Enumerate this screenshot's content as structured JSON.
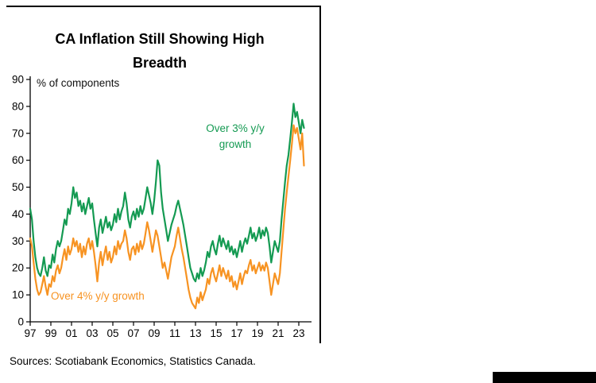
{
  "header": {
    "title_line1": "CA Inflation Still Showing High",
    "title_line2": "Breadth"
  },
  "annotations": {
    "axis_note": "% of components",
    "green_label_line1": "Over 3% y/y",
    "green_label_line2": "growth",
    "orange_label": "Over 4% y/y growth"
  },
  "source": "Sources: Scotiabank Economics, Statistics Canada.",
  "colors": {
    "green": "#149a52",
    "orange": "#f79322",
    "frame": "#000000",
    "axis": "#000000"
  },
  "chart_data": {
    "type": "line",
    "title": "CA Inflation Still Showing High Breadth",
    "xlabel": "",
    "ylabel": "% of components",
    "ylim": [
      0,
      90
    ],
    "ytick_step": 10,
    "ytick_labels": [
      "0",
      "10",
      "20",
      "30",
      "40",
      "50",
      "60",
      "70",
      "80",
      "90"
    ],
    "x_start_year": 1997,
    "x_end_year": 2023.5,
    "points_per_year": 6,
    "xtick_labels": [
      "97",
      "99",
      "01",
      "03",
      "05",
      "07",
      "09",
      "11",
      "13",
      "15",
      "17",
      "19",
      "21",
      "23"
    ],
    "grid": false,
    "legend_position": "inline-annotations",
    "series": [
      {
        "name": "Over 3% y/y growth",
        "color_key": "green",
        "values": [
          42,
          38,
          30,
          24,
          20,
          18,
          17,
          20,
          24,
          19,
          17,
          21,
          20,
          25,
          22,
          27,
          30,
          28,
          30,
          34,
          38,
          36,
          42,
          40,
          44,
          50,
          46,
          48,
          43,
          45,
          41,
          44,
          40,
          43,
          46,
          42,
          44,
          38,
          33,
          28,
          35,
          38,
          33,
          36,
          39,
          35,
          37,
          34,
          36,
          40,
          37,
          42,
          38,
          41,
          43,
          48,
          44,
          38,
          35,
          39,
          41,
          38,
          42,
          39,
          43,
          40,
          42,
          46,
          50,
          47,
          44,
          40,
          45,
          52,
          60,
          58,
          48,
          42,
          38,
          34,
          30,
          33,
          36,
          38,
          40,
          43,
          45,
          42,
          39,
          36,
          32,
          28,
          24,
          20,
          18,
          16,
          15,
          18,
          16,
          20,
          17,
          19,
          22,
          26,
          24,
          28,
          30,
          27,
          25,
          29,
          32,
          28,
          31,
          29,
          27,
          30,
          26,
          28,
          25,
          27,
          24,
          27,
          30,
          26,
          29,
          31,
          29,
          32,
          35,
          31,
          33,
          30,
          32,
          35,
          31,
          34,
          32,
          35,
          33,
          28,
          22,
          26,
          30,
          28,
          26,
          30,
          38,
          45,
          52,
          58,
          62,
          68,
          74,
          81,
          76,
          78,
          74,
          70,
          75,
          72
        ]
      },
      {
        "name": "Over 4% y/y growth",
        "color_key": "orange",
        "values": [
          31,
          28,
          22,
          16,
          12,
          10,
          11,
          14,
          17,
          13,
          10,
          14,
          13,
          17,
          15,
          19,
          21,
          18,
          20,
          24,
          27,
          23,
          28,
          25,
          27,
          31,
          28,
          30,
          26,
          29,
          24,
          28,
          25,
          29,
          31,
          27,
          30,
          26,
          21,
          15,
          22,
          26,
          21,
          25,
          28,
          23,
          26,
          22,
          24,
          28,
          25,
          30,
          27,
          29,
          30,
          34,
          31,
          26,
          23,
          27,
          28,
          25,
          29,
          26,
          30,
          27,
          29,
          33,
          37,
          34,
          30,
          26,
          30,
          34,
          32,
          28,
          24,
          20,
          22,
          19,
          16,
          20,
          24,
          26,
          28,
          32,
          35,
          31,
          27,
          24,
          20,
          16,
          12,
          9,
          7,
          6,
          5,
          9,
          7,
          11,
          8,
          10,
          12,
          16,
          14,
          18,
          20,
          17,
          15,
          18,
          21,
          17,
          20,
          18,
          16,
          19,
          15,
          17,
          13,
          15,
          12,
          15,
          18,
          14,
          17,
          19,
          18,
          21,
          23,
          19,
          21,
          18,
          20,
          22,
          19,
          21,
          19,
          22,
          20,
          15,
          10,
          14,
          18,
          16,
          14,
          18,
          26,
          34,
          42,
          48,
          54,
          60,
          66,
          73,
          70,
          72,
          68,
          64,
          70,
          58
        ]
      }
    ]
  }
}
